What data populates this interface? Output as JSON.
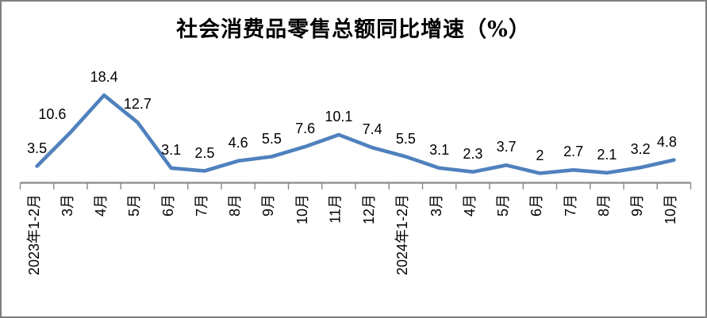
{
  "window": {
    "background_color": "#FFFFFF",
    "border_color": "#7F7F7F"
  },
  "chart_data": {
    "type": "line",
    "title": "社会消费品零售总额同比增速（%）",
    "categories": [
      "2023年1-2月",
      "3月",
      "4月",
      "5月",
      "6月",
      "7月",
      "8月",
      "9月",
      "10月",
      "11月",
      "12月",
      "2024年1-2月",
      "3月",
      "4月",
      "5月",
      "6月",
      "7月",
      "8月",
      "9月",
      "10月"
    ],
    "values": [
      3.5,
      10.6,
      18.4,
      12.7,
      3.1,
      2.5,
      4.6,
      5.5,
      7.6,
      10.1,
      7.4,
      5.5,
      3.1,
      2.3,
      3.7,
      2,
      2.7,
      2.1,
      3.2,
      4.8
    ],
    "data_labels": [
      "3.5",
      "10.6",
      "18.4",
      "12.7",
      "3.1",
      "2.5",
      "4.6",
      "5.5",
      "7.6",
      "10.1",
      "7.4",
      "5.5",
      "3.1",
      "2.3",
      "3.7",
      "2",
      "2.7",
      "2.1",
      "3.2",
      "4.8"
    ],
    "xlabel": "",
    "ylabel": "",
    "ylim": [
      0,
      20
    ],
    "grid": false,
    "legend": "none",
    "line_color": "#4F81BD",
    "axis_color": "#898989",
    "tick_color": "#898989",
    "label_color": "#000000"
  }
}
